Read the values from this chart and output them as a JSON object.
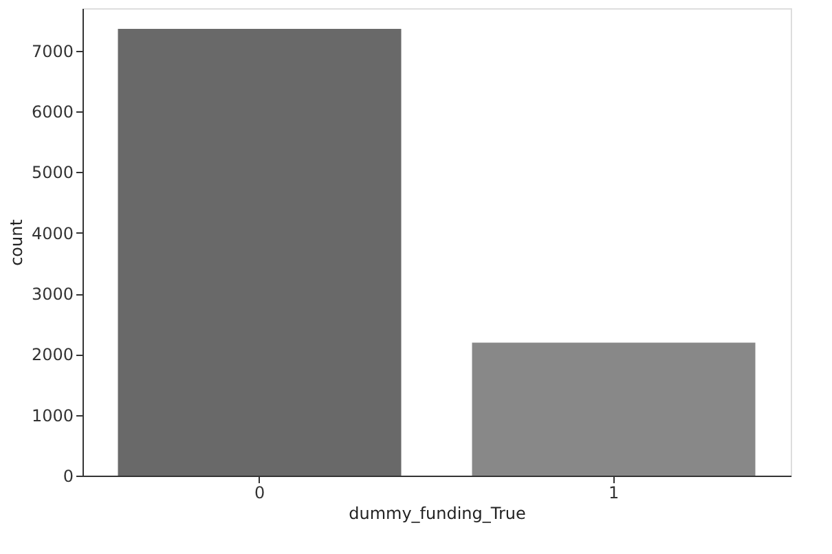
{
  "chart_data": {
    "type": "bar",
    "xlabel": "dummy_funding_True",
    "ylabel": "count",
    "categories": [
      "0",
      "1"
    ],
    "values": [
      7360,
      2190
    ],
    "colors": [
      "#696969",
      "#888888"
    ],
    "ylim": [
      0,
      7700
    ],
    "yticks": [
      0,
      1000,
      2000,
      3000,
      4000,
      5000,
      6000,
      7000
    ],
    "grid": false
  }
}
